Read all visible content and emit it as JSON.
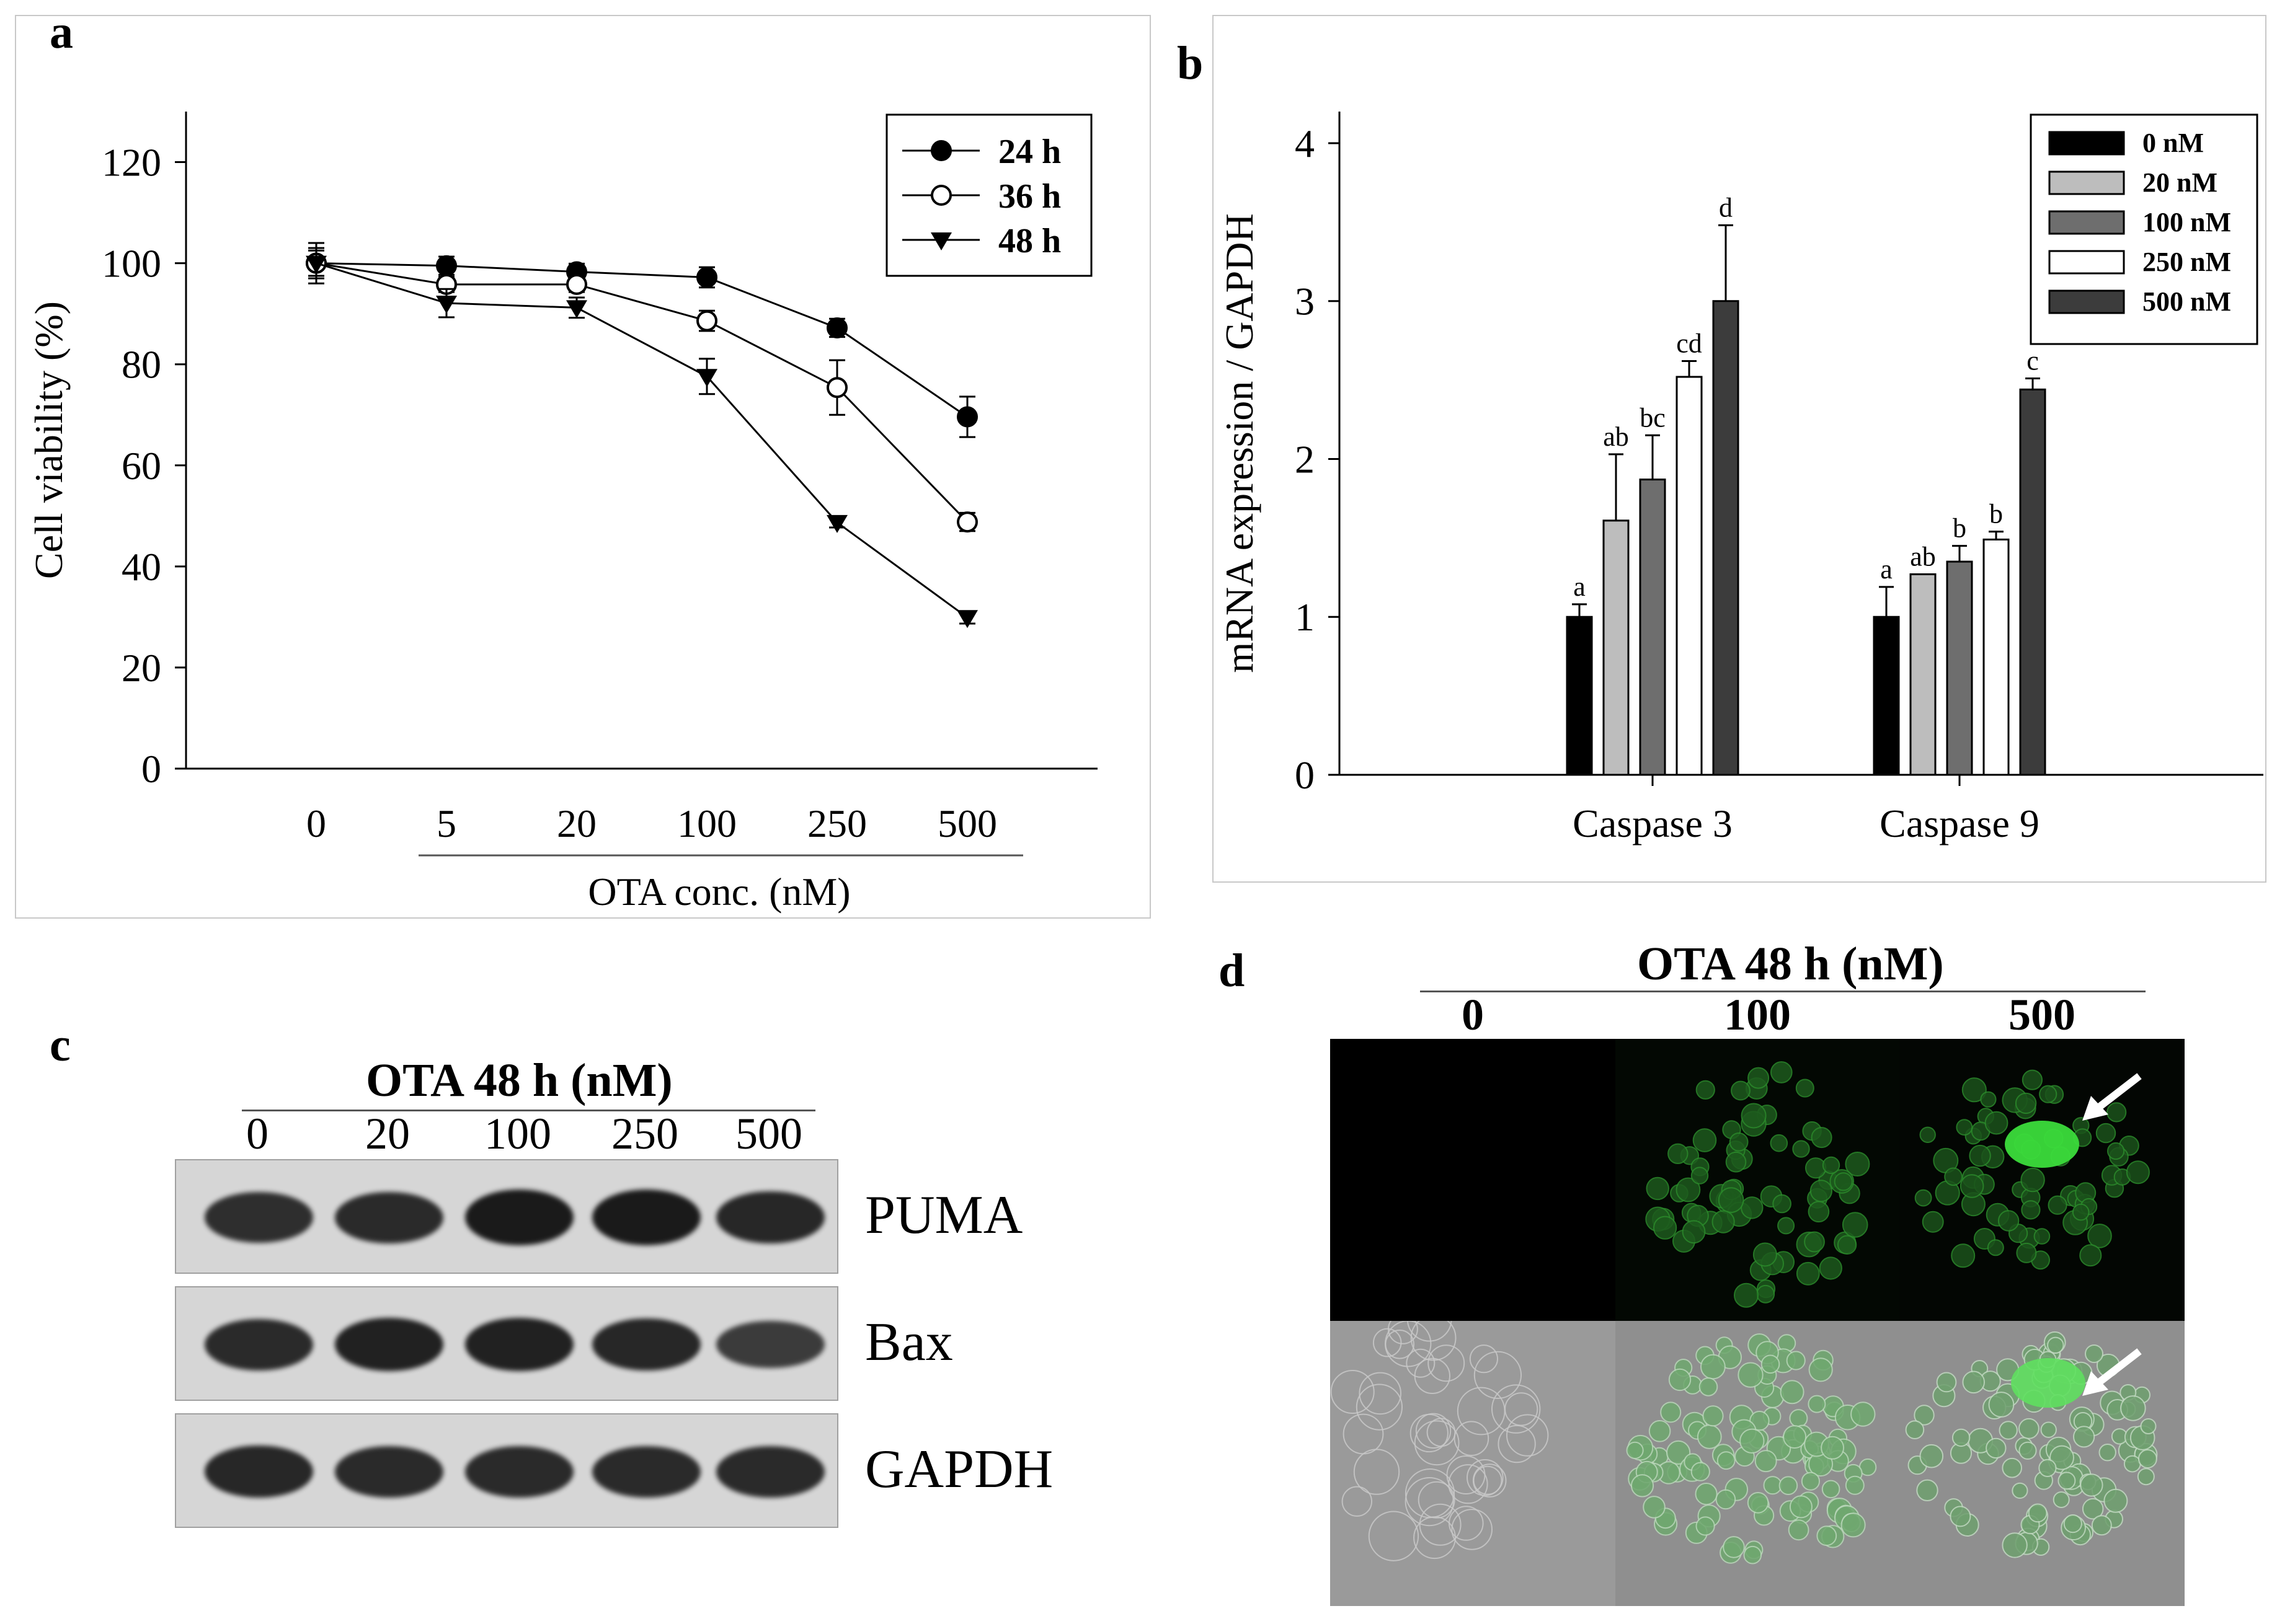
{
  "panels": {
    "a": {
      "letter": "a",
      "chart_data": {
        "type": "line",
        "title": "",
        "xlabel": "OTA conc. (nM)",
        "ylabel": "Cell viability (%)",
        "categories": [
          "0",
          "5",
          "20",
          "100",
          "250",
          "500"
        ],
        "ylim": [
          0,
          130
        ],
        "yticks": [
          0,
          20,
          40,
          60,
          80,
          100,
          120
        ],
        "grid": false,
        "legend_position": "top-right",
        "series": [
          {
            "name": "24 h",
            "marker": "filled-circle",
            "values": [
              100,
              99.5,
              98.3,
              97.2,
              87.2,
              69.6
            ],
            "errors": [
              2.5,
              1.8,
              1.6,
              2.0,
              1.8,
              4.0
            ]
          },
          {
            "name": "36 h",
            "marker": "open-circle",
            "values": [
              100,
              95.8,
              95.8,
              88.6,
              75.4,
              48.8
            ],
            "errors": [
              3.0,
              1.5,
              1.5,
              2.0,
              5.4,
              1.8
            ]
          },
          {
            "name": "48 h",
            "marker": "filled-triangle-down",
            "values": [
              100,
              92.1,
              91.2,
              77.6,
              48.7,
              29.9
            ],
            "errors": [
              4.0,
              2.8,
              2.0,
              3.5,
              1.0,
              1.2
            ]
          }
        ]
      }
    },
    "b": {
      "letter": "b",
      "chart_data": {
        "type": "bar",
        "title": "",
        "xlabel": "",
        "ylabel": "mRNA expression / GAPDH",
        "categories": [
          "Caspase 3",
          "Caspase 9"
        ],
        "ylim": [
          0,
          4.2
        ],
        "yticks": [
          0,
          1,
          2,
          3,
          4
        ],
        "grid": false,
        "legend_position": "top-right",
        "series": [
          {
            "name": "0 nM",
            "color": "#000000",
            "values": [
              1.0,
              1.0
            ],
            "errors": [
              0.08,
              0.19
            ],
            "letters": [
              "a",
              "a"
            ]
          },
          {
            "name": "20 nM",
            "color": "#bdbdbd",
            "values": [
              1.61,
              1.27
            ],
            "errors": [
              0.42,
              0.0
            ],
            "letters": [
              "ab",
              "ab"
            ]
          },
          {
            "name": "100 nM",
            "color": "#6e6e6e",
            "values": [
              1.87,
              1.35
            ],
            "errors": [
              0.28,
              0.1
            ],
            "letters": [
              "bc",
              "b"
            ]
          },
          {
            "name": "250 nM",
            "color": "#ffffff",
            "values": [
              2.52,
              1.49
            ],
            "errors": [
              0.1,
              0.05
            ],
            "letters": [
              "cd",
              "b"
            ]
          },
          {
            "name": "500 nM",
            "color": "#3c3c3c",
            "values": [
              3.0,
              2.44
            ],
            "errors": [
              0.48,
              0.07
            ],
            "letters": [
              "d",
              "c"
            ]
          }
        ]
      }
    },
    "c": {
      "letter": "c",
      "title": "OTA 48 h (nM)",
      "lanes": [
        "0",
        "20",
        "100",
        "250",
        "500"
      ],
      "proteins": [
        {
          "name": "PUMA",
          "intensity": [
            0.75,
            0.8,
            1.0,
            1.0,
            0.85
          ]
        },
        {
          "name": "Bax",
          "intensity": [
            0.8,
            0.9,
            0.9,
            0.85,
            0.6
          ]
        },
        {
          "name": "GAPDH",
          "intensity": [
            0.85,
            0.8,
            0.8,
            0.8,
            0.8
          ]
        }
      ]
    },
    "d": {
      "letter": "d",
      "title": "OTA 48 h (nM)",
      "columns": [
        "0",
        "100",
        "500"
      ],
      "rows": [
        "fluorescence",
        "merged"
      ]
    }
  }
}
